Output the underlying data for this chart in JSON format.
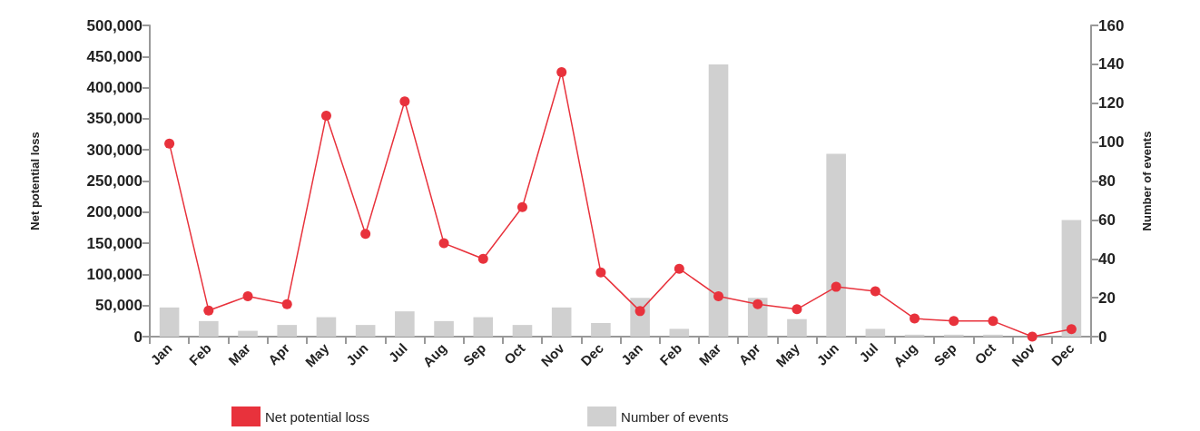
{
  "chart_data": {
    "type": "bar",
    "categories": [
      "Jan",
      "Feb",
      "Mar",
      "Apr",
      "May",
      "Jun",
      "Jul",
      "Aug",
      "Sep",
      "Oct",
      "Nov",
      "Dec",
      "Jan",
      "Feb",
      "Mar",
      "Apr",
      "May",
      "Jun",
      "Jul",
      "Aug",
      "Sep",
      "Oct",
      "Nov",
      "Dec"
    ],
    "series": [
      {
        "name": "Net potential loss",
        "type": "line",
        "color": "#e8323c",
        "values": [
          310000,
          42000,
          65000,
          52000,
          355000,
          165000,
          378000,
          150000,
          125000,
          208000,
          425000,
          103000,
          41000,
          109000,
          65000,
          52000,
          44000,
          80000,
          73000,
          29000,
          25000,
          25000,
          0,
          12000
        ]
      },
      {
        "name": "Number of events",
        "axis": "y2",
        "color": "#d0d0d0",
        "values": [
          15,
          8,
          3,
          6,
          10,
          6,
          13,
          8,
          10,
          6,
          15,
          7,
          20,
          4,
          140,
          20,
          9,
          94,
          4,
          1,
          1,
          1,
          null,
          60
        ]
      }
    ],
    "ylabel": "Net potential loss",
    "y2label": "Number of events",
    "ylim": [
      0,
      500000
    ],
    "yticks": [
      0,
      {
        "value": 50000,
        "label": "50,000"
      },
      {
        "value": 100000,
        "label": "100,000"
      },
      {
        "value": 150000,
        "label": "150,000"
      },
      {
        "value": 200000,
        "label": "200,000"
      },
      {
        "value": 250000,
        "label": "250,000"
      },
      {
        "value": 300000,
        "label": "300,000"
      },
      {
        "value": 350000,
        "label": "350,000"
      },
      {
        "value": 400000,
        "label": "400,000"
      },
      {
        "value": 450000,
        "label": "450,000"
      },
      {
        "value": 500000,
        "label": "500,000"
      }
    ],
    "y2lim": [
      0,
      160
    ],
    "y2ticks": [
      0,
      20,
      40,
      60,
      80,
      100,
      120,
      140,
      160
    ],
    "marker": "circle",
    "grid": false,
    "legend": "bottom"
  }
}
